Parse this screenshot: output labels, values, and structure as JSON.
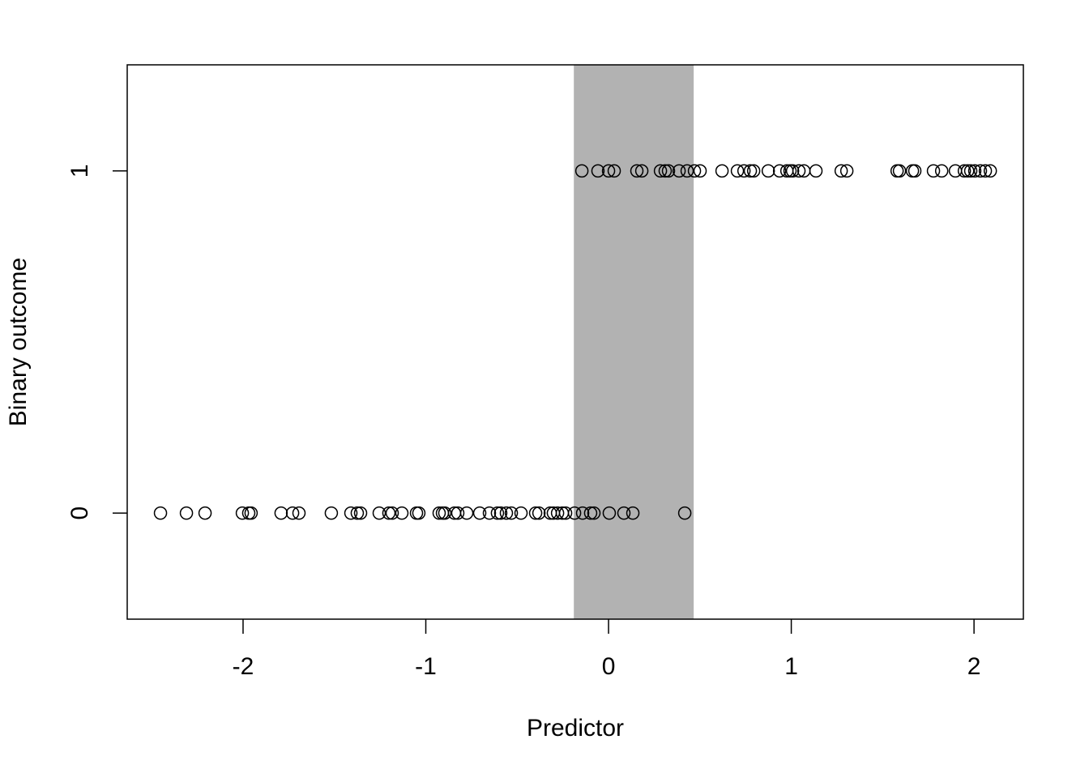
{
  "chart_data": {
    "type": "scatter",
    "x_label": "Predictor",
    "y_label": "Binary outcome",
    "x": [
      -2.452,
      -2.31,
      -2.208,
      -2.004,
      -1.969,
      -1.956,
      -1.792,
      -1.729,
      -1.694,
      -1.517,
      -1.41,
      -1.375,
      -1.357,
      -1.255,
      -1.202,
      -1.184,
      -1.131,
      -1.051,
      -1.038,
      -0.927,
      -0.909,
      -0.896,
      -0.843,
      -0.825,
      -0.776,
      -0.705,
      -0.652,
      -0.608,
      -0.59,
      -0.559,
      -0.532,
      -0.479,
      -0.399,
      -0.381,
      -0.319,
      -0.302,
      -0.279,
      -0.253,
      -0.235,
      -0.186,
      -0.142,
      -0.098,
      -0.08,
      0.004,
      0.084,
      0.133,
      0.417,
      -0.146,
      -0.058,
      0.0,
      0.031,
      0.155,
      0.182,
      0.284,
      0.31,
      0.328,
      0.386,
      0.43,
      0.47,
      0.501,
      0.621,
      0.705,
      0.741,
      0.776,
      0.794,
      0.874,
      0.936,
      0.976,
      0.993,
      1.007,
      1.042,
      1.069,
      1.135,
      1.273,
      1.304,
      1.579,
      1.592,
      1.663,
      1.676,
      1.778,
      1.823,
      1.898,
      1.947,
      1.965,
      1.982,
      2.004,
      2.035,
      2.062,
      2.089
    ],
    "values": [
      0,
      0,
      0,
      0,
      0,
      0,
      0,
      0,
      0,
      0,
      0,
      0,
      0,
      0,
      0,
      0,
      0,
      0,
      0,
      0,
      0,
      0,
      0,
      0,
      0,
      0,
      0,
      0,
      0,
      0,
      0,
      0,
      0,
      0,
      0,
      0,
      0,
      0,
      0,
      0,
      0,
      0,
      0,
      0,
      0,
      0,
      0,
      1,
      1,
      1,
      1,
      1,
      1,
      1,
      1,
      1,
      1,
      1,
      1,
      1,
      1,
      1,
      1,
      1,
      1,
      1,
      1,
      1,
      1,
      1,
      1,
      1,
      1,
      1,
      1,
      1,
      1,
      1,
      1,
      1,
      1,
      1,
      1,
      1,
      1,
      1,
      1,
      1,
      1
    ],
    "color": "#000000",
    "shaded_region": [
      -0.19,
      0.466
    ],
    "shaded_color": "#b2b2b2",
    "xlim": [
      -2.634,
      2.27
    ],
    "ylim": [
      -0.31,
      1.31
    ],
    "xticks": [
      -2,
      -1,
      0,
      1,
      2
    ],
    "yticks": [
      0,
      1
    ]
  }
}
